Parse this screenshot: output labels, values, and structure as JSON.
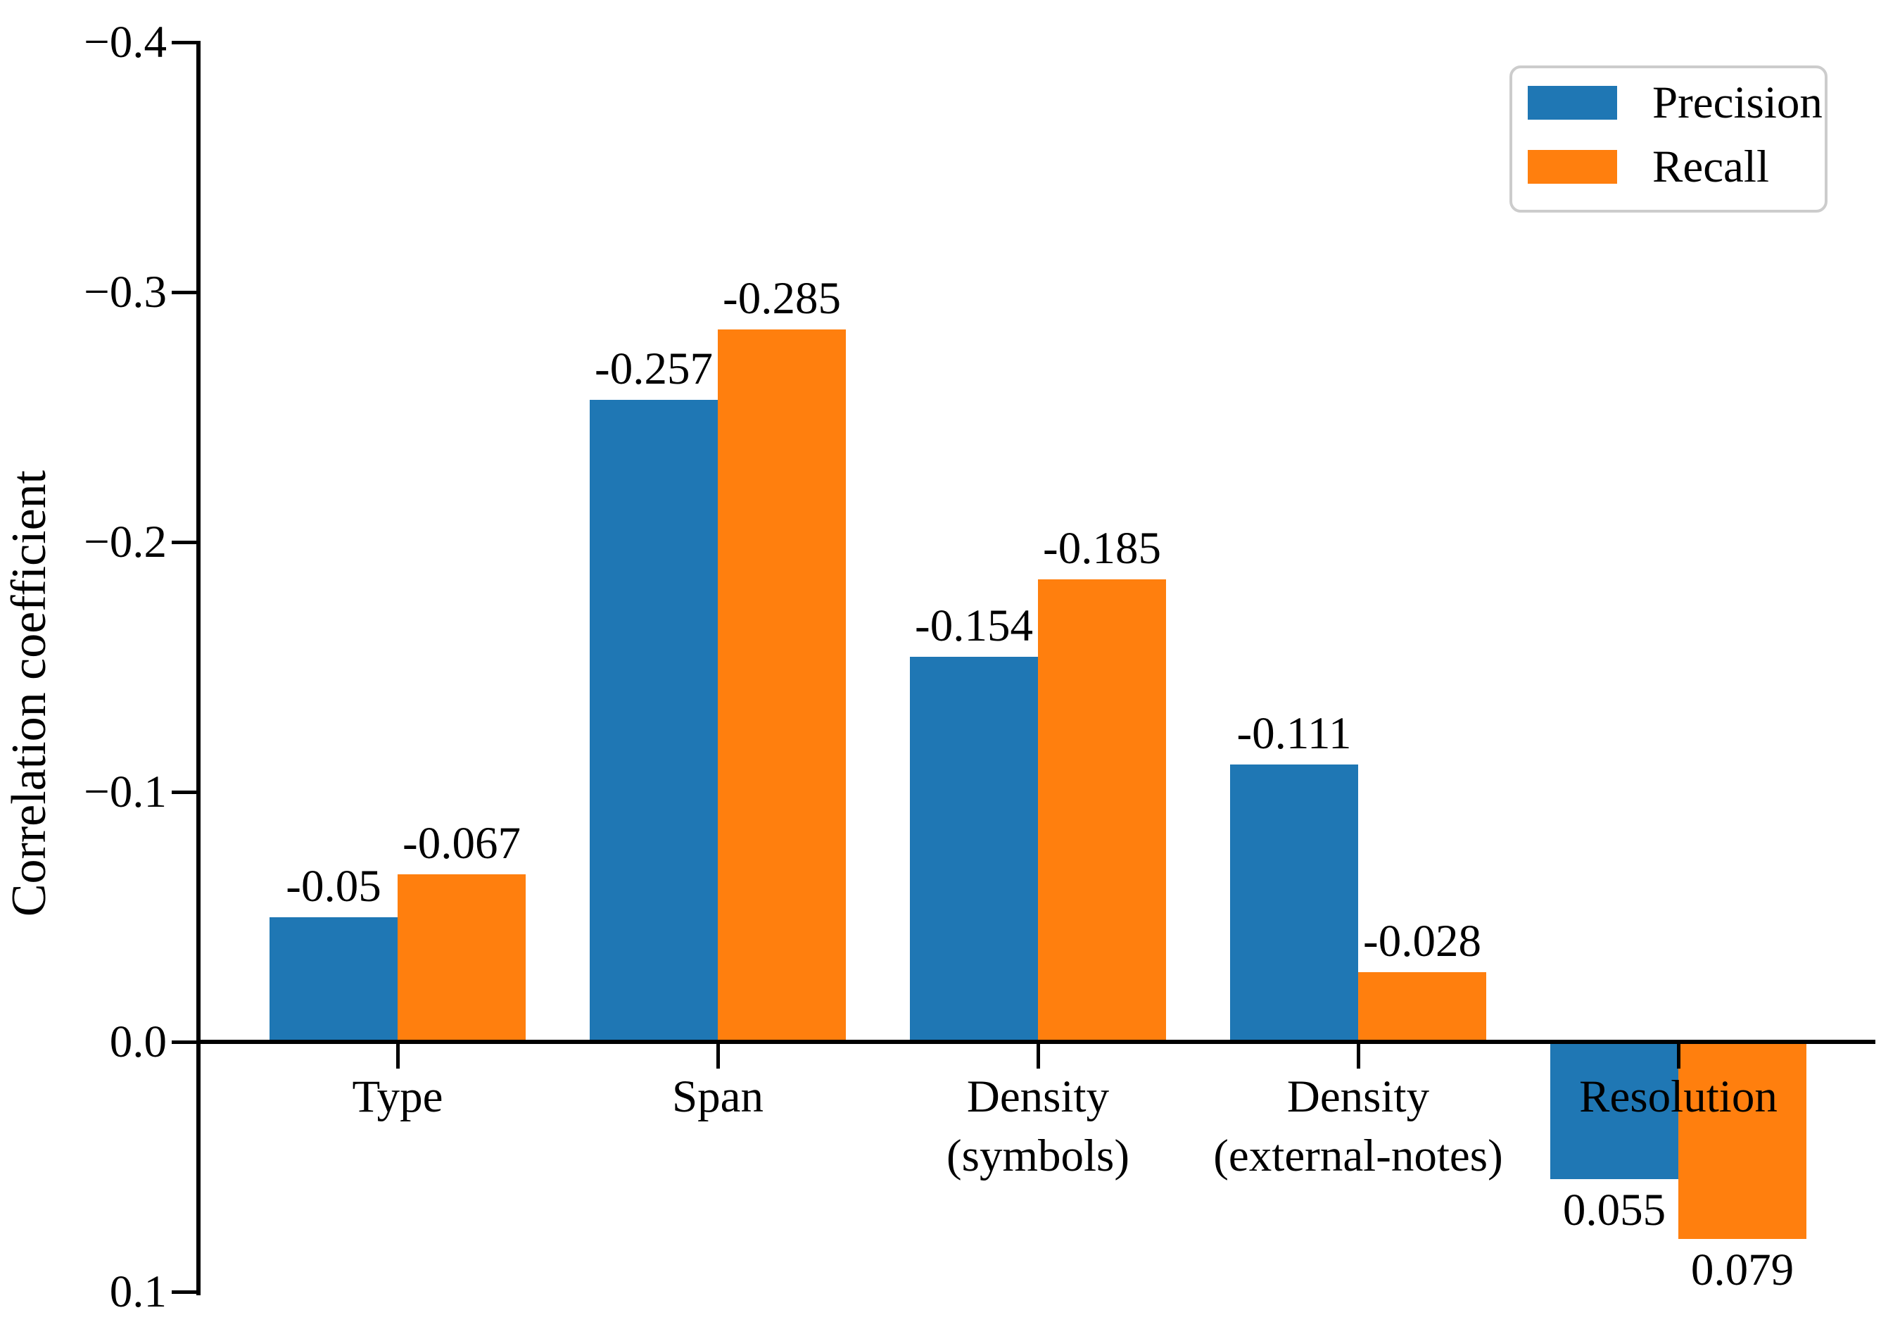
{
  "chart_data": {
    "type": "bar",
    "categories": [
      "Type",
      "Span",
      "Density\n(symbols)",
      "Density\n(external-notes)",
      "Resolution"
    ],
    "series": [
      {
        "name": "Precision",
        "color": "#1f77b4",
        "values": [
          -0.05,
          -0.257,
          -0.154,
          -0.111,
          0.055
        ],
        "labels": [
          "-0.05",
          "-0.257",
          "-0.154",
          "-0.111",
          "0.055"
        ]
      },
      {
        "name": "Recall",
        "color": "#ff7f0e",
        "values": [
          -0.067,
          -0.285,
          -0.185,
          -0.028,
          0.079
        ],
        "labels": [
          "-0.067",
          "-0.285",
          "-0.185",
          "-0.028",
          "0.079"
        ]
      }
    ],
    "title": "",
    "xlabel": "",
    "ylabel": "Correlation coefficient",
    "y_ticks": [
      {
        "value": -0.4,
        "label": "−0.4"
      },
      {
        "value": -0.3,
        "label": "−0.3"
      },
      {
        "value": -0.2,
        "label": "−0.2"
      },
      {
        "value": -0.1,
        "label": "−0.1"
      },
      {
        "value": 0.0,
        "label": "0.0"
      },
      {
        "value": 0.1,
        "label": "0.1"
      }
    ],
    "ylim": [
      -0.4,
      0.1
    ],
    "axis_inverted": true,
    "baseline": 0.0,
    "grid": false,
    "legend_position": "upper right",
    "bar_label_colors": "#000000",
    "background_color": "#ffffff"
  }
}
